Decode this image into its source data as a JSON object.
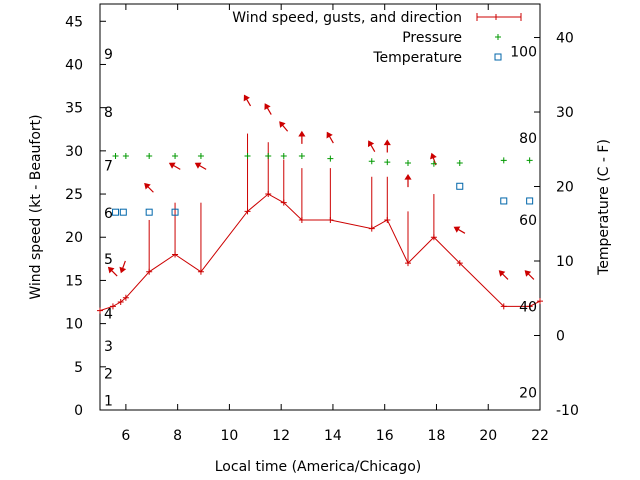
{
  "chart_data": {
    "type": "line",
    "xlabel": "Local time (America/Chicago)",
    "ylabel": "Wind speed (kt - Beaufort)",
    "y2label": "Temperature (C - F)",
    "xlim": [
      5,
      22
    ],
    "ylim": [
      0,
      47
    ],
    "y2lim": [
      -10,
      44.5
    ],
    "x_ticks": [
      6,
      8,
      10,
      12,
      14,
      16,
      18,
      20,
      22
    ],
    "y_ticks": [
      0,
      5,
      10,
      15,
      20,
      25,
      30,
      35,
      40,
      45
    ],
    "y2_ticks": [
      -10,
      0,
      10,
      20,
      30,
      40
    ],
    "beaufort_labels": [
      {
        "label": "1",
        "wind": 1.1
      },
      {
        "label": "2",
        "wind": 4.2
      },
      {
        "label": "3",
        "wind": 7.4
      },
      {
        "label": "4",
        "wind": 11.2
      },
      {
        "label": "5",
        "wind": 17.5
      },
      {
        "label": "6",
        "wind": 22.8
      },
      {
        "label": "7",
        "wind": 28.3
      },
      {
        "label": "8",
        "wind": 34.5
      },
      {
        "label": "9",
        "wind": 41.2
      }
    ],
    "fahrenheit_labels": [
      {
        "label": "20",
        "wind": 2.0
      },
      {
        "label": "40",
        "wind": 12.0
      },
      {
        "label": "60",
        "wind": 22.0
      },
      {
        "label": "80",
        "wind": 31.5
      },
      {
        "label": "100",
        "wind": 41.5
      }
    ],
    "legend": {
      "position": "top-right",
      "entries": [
        {
          "label": "Wind speed, gusts, and direction",
          "color": "#cc0000",
          "marker": "errorbar"
        },
        {
          "label": "Pressure",
          "color": "#009900",
          "marker": "plus"
        },
        {
          "label": "Temperature",
          "color": "#0066aa",
          "marker": "square"
        }
      ]
    },
    "series": [
      {
        "name": "Wind speed, gusts, and direction",
        "color": "#cc0000",
        "x": [
          5.0,
          5.5,
          5.8,
          6.0,
          6.9,
          7.9,
          8.9,
          10.7,
          11.5,
          12.1,
          12.8,
          13.9,
          15.5,
          16.1,
          16.9,
          17.9,
          18.9,
          20.6,
          21.6,
          22.0
        ],
        "y": [
          11.5,
          12.0,
          12.5,
          13.0,
          16.0,
          18.0,
          16.0,
          23.0,
          25.0,
          24.0,
          22.0,
          22.0,
          21.0,
          22.0,
          17.0,
          20.0,
          17.0,
          12.0,
          12.0,
          12.6
        ],
        "gust": [
          null,
          null,
          null,
          null,
          22.0,
          24.0,
          24.0,
          32.0,
          31.0,
          29.0,
          28.0,
          28.0,
          27.0,
          27.0,
          23.0,
          25.0,
          null,
          null,
          null,
          null
        ]
      },
      {
        "name": "Wind direction arrows",
        "color": "#cc0000",
        "x": [
          5.5,
          5.9,
          6.9,
          7.9,
          8.9,
          10.7,
          11.5,
          12.1,
          12.8,
          13.9,
          15.5,
          16.1,
          16.9,
          17.9,
          18.9,
          20.6,
          21.6
        ],
        "y": [
          16.0,
          16.6,
          25.7,
          28.2,
          28.2,
          35.8,
          34.8,
          32.8,
          31.5,
          31.5,
          30.5,
          30.5,
          26.5,
          29.0,
          20.8,
          15.6,
          15.6
        ],
        "direction_deg": [
          315,
          200,
          315,
          300,
          300,
          330,
          330,
          320,
          0,
          330,
          330,
          0,
          0,
          340,
          300,
          315,
          315
        ]
      },
      {
        "name": "Pressure",
        "color": "#009900",
        "x": [
          5.6,
          6.0,
          6.9,
          7.9,
          8.9,
          10.7,
          11.5,
          12.1,
          12.8,
          13.9,
          15.5,
          16.1,
          16.9,
          17.9,
          18.9,
          20.6,
          21.6
        ],
        "y": [
          29.4,
          29.4,
          29.4,
          29.4,
          29.4,
          29.4,
          29.4,
          29.4,
          29.4,
          29.1,
          28.8,
          28.7,
          28.6,
          28.5,
          28.6,
          28.9,
          28.9
        ]
      },
      {
        "name": "Temperature",
        "color": "#0066aa",
        "x": [
          5.6,
          5.9,
          6.9,
          7.9,
          18.9,
          20.6,
          21.6
        ],
        "y": [
          22.9,
          22.9,
          22.9,
          22.9,
          25.9,
          24.2,
          24.2
        ]
      }
    ]
  }
}
